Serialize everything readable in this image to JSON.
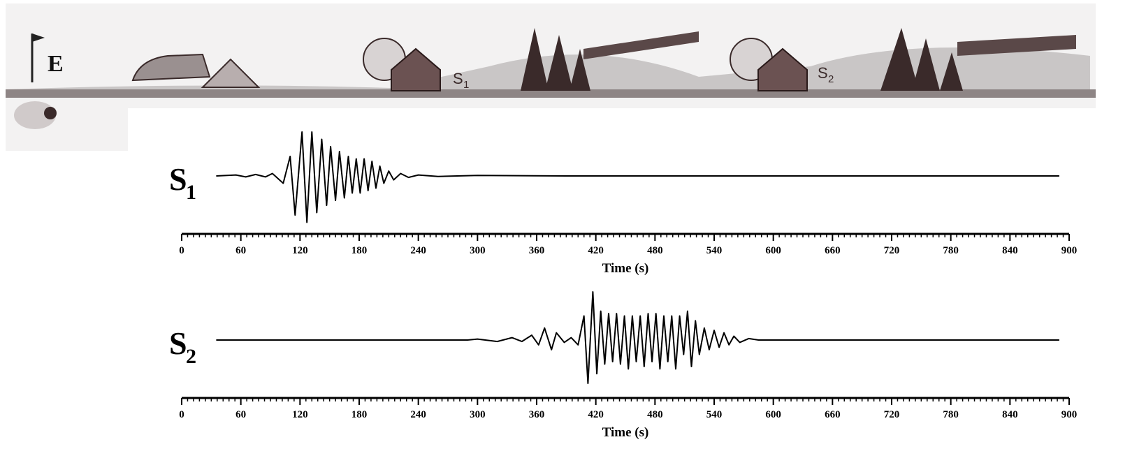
{
  "scene": {
    "source": "E",
    "stations": [
      [
        "S",
        "1"
      ],
      [
        "S",
        "2"
      ]
    ]
  },
  "chart_data": [
    {
      "type": "line",
      "series_label": [
        "S",
        "1"
      ],
      "xlabel": "Time (s)",
      "color": "#000000",
      "xlim": [
        0,
        900
      ],
      "xticks": [
        0,
        60,
        120,
        180,
        240,
        300,
        360,
        420,
        480,
        540,
        600,
        660,
        720,
        780,
        840,
        900
      ],
      "ylim": [
        -1,
        1
      ],
      "x": [
        35,
        55,
        65,
        75,
        85,
        92,
        103,
        110,
        115,
        122,
        127,
        132,
        137,
        142,
        147,
        151,
        156,
        160,
        165,
        169,
        173,
        177,
        181,
        185,
        189,
        193,
        197,
        201,
        205,
        210,
        215,
        222,
        230,
        240,
        260,
        300,
        390,
        890
      ],
      "values": [
        0,
        0.02,
        -0.02,
        0.03,
        -0.02,
        0.05,
        -0.15,
        0.4,
        -0.8,
        0.9,
        -0.95,
        0.9,
        -0.75,
        0.75,
        -0.6,
        0.6,
        -0.5,
        0.5,
        -0.45,
        0.4,
        -0.35,
        0.35,
        -0.35,
        0.35,
        -0.3,
        0.3,
        -0.25,
        0.2,
        -0.15,
        0.1,
        -0.08,
        0.05,
        -0.03,
        0.02,
        -0.01,
        0.01,
        0,
        0
      ]
    },
    {
      "type": "line",
      "series_label": [
        "S",
        "2"
      ],
      "xlabel": "Time (s)",
      "color": "#000000",
      "xlim": [
        0,
        900
      ],
      "xticks": [
        0,
        60,
        120,
        180,
        240,
        300,
        360,
        420,
        480,
        540,
        600,
        660,
        720,
        780,
        840,
        900
      ],
      "ylim": [
        -1,
        1
      ],
      "x": [
        35,
        290,
        300,
        320,
        335,
        345,
        355,
        362,
        368,
        375,
        380,
        388,
        395,
        402,
        408,
        412,
        417,
        421,
        425,
        429,
        433,
        437,
        441,
        445,
        449,
        453,
        457,
        461,
        465,
        469,
        473,
        477,
        481,
        485,
        489,
        493,
        497,
        501,
        505,
        509,
        513,
        517,
        521,
        525,
        530,
        535,
        540,
        545,
        550,
        555,
        560,
        566,
        575,
        585,
        890
      ],
      "values": [
        0,
        0,
        0.02,
        -0.03,
        0.05,
        -0.03,
        0.1,
        -0.1,
        0.25,
        -0.2,
        0.15,
        -0.05,
        0.05,
        -0.1,
        0.5,
        -0.9,
        1.0,
        -0.7,
        0.6,
        -0.5,
        0.55,
        -0.45,
        0.55,
        -0.5,
        0.5,
        -0.6,
        0.5,
        -0.45,
        0.5,
        -0.55,
        0.55,
        -0.45,
        0.55,
        -0.6,
        0.5,
        -0.45,
        0.5,
        -0.6,
        0.5,
        -0.3,
        0.6,
        -0.55,
        0.4,
        -0.3,
        0.25,
        -0.2,
        0.2,
        -0.15,
        0.15,
        -0.1,
        0.08,
        -0.05,
        0.03,
        0,
        0
      ]
    }
  ]
}
